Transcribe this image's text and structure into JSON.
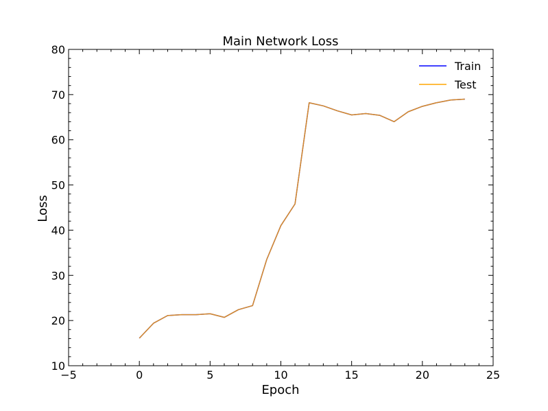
{
  "chart_data": {
    "type": "line",
    "title": "Main Network Loss",
    "xlabel": "Epoch",
    "ylabel": "Loss",
    "xlim": [
      -5,
      25
    ],
    "ylim": [
      10,
      80
    ],
    "xticks": [
      -5,
      0,
      5,
      10,
      15,
      20,
      25
    ],
    "yticks": [
      10,
      20,
      30,
      40,
      50,
      60,
      70,
      80
    ],
    "grid": false,
    "legend_position": "top-right",
    "x": [
      0,
      1,
      2,
      3,
      4,
      5,
      6,
      7,
      8,
      9,
      10,
      11,
      12,
      13,
      14,
      15,
      16,
      17,
      18,
      19,
      20,
      21,
      22,
      23
    ],
    "series": [
      {
        "name": "Train",
        "color": "#0000ff",
        "values": [
          16.1,
          19.4,
          21.1,
          21.3,
          21.3,
          21.5,
          20.7,
          22.4,
          23.3,
          33.5,
          41.0,
          45.8,
          68.2,
          67.5,
          66.4,
          65.5,
          65.8,
          65.4,
          64.0,
          66.2,
          67.4,
          68.2,
          68.8,
          69.0
        ]
      },
      {
        "name": "Test",
        "color": "#ffa500",
        "values": [
          16.1,
          19.4,
          21.1,
          21.3,
          21.3,
          21.5,
          20.7,
          22.4,
          23.3,
          33.5,
          41.0,
          45.8,
          68.2,
          67.5,
          66.4,
          65.5,
          65.8,
          65.4,
          64.0,
          66.2,
          67.4,
          68.2,
          68.8,
          69.0
        ]
      }
    ]
  }
}
